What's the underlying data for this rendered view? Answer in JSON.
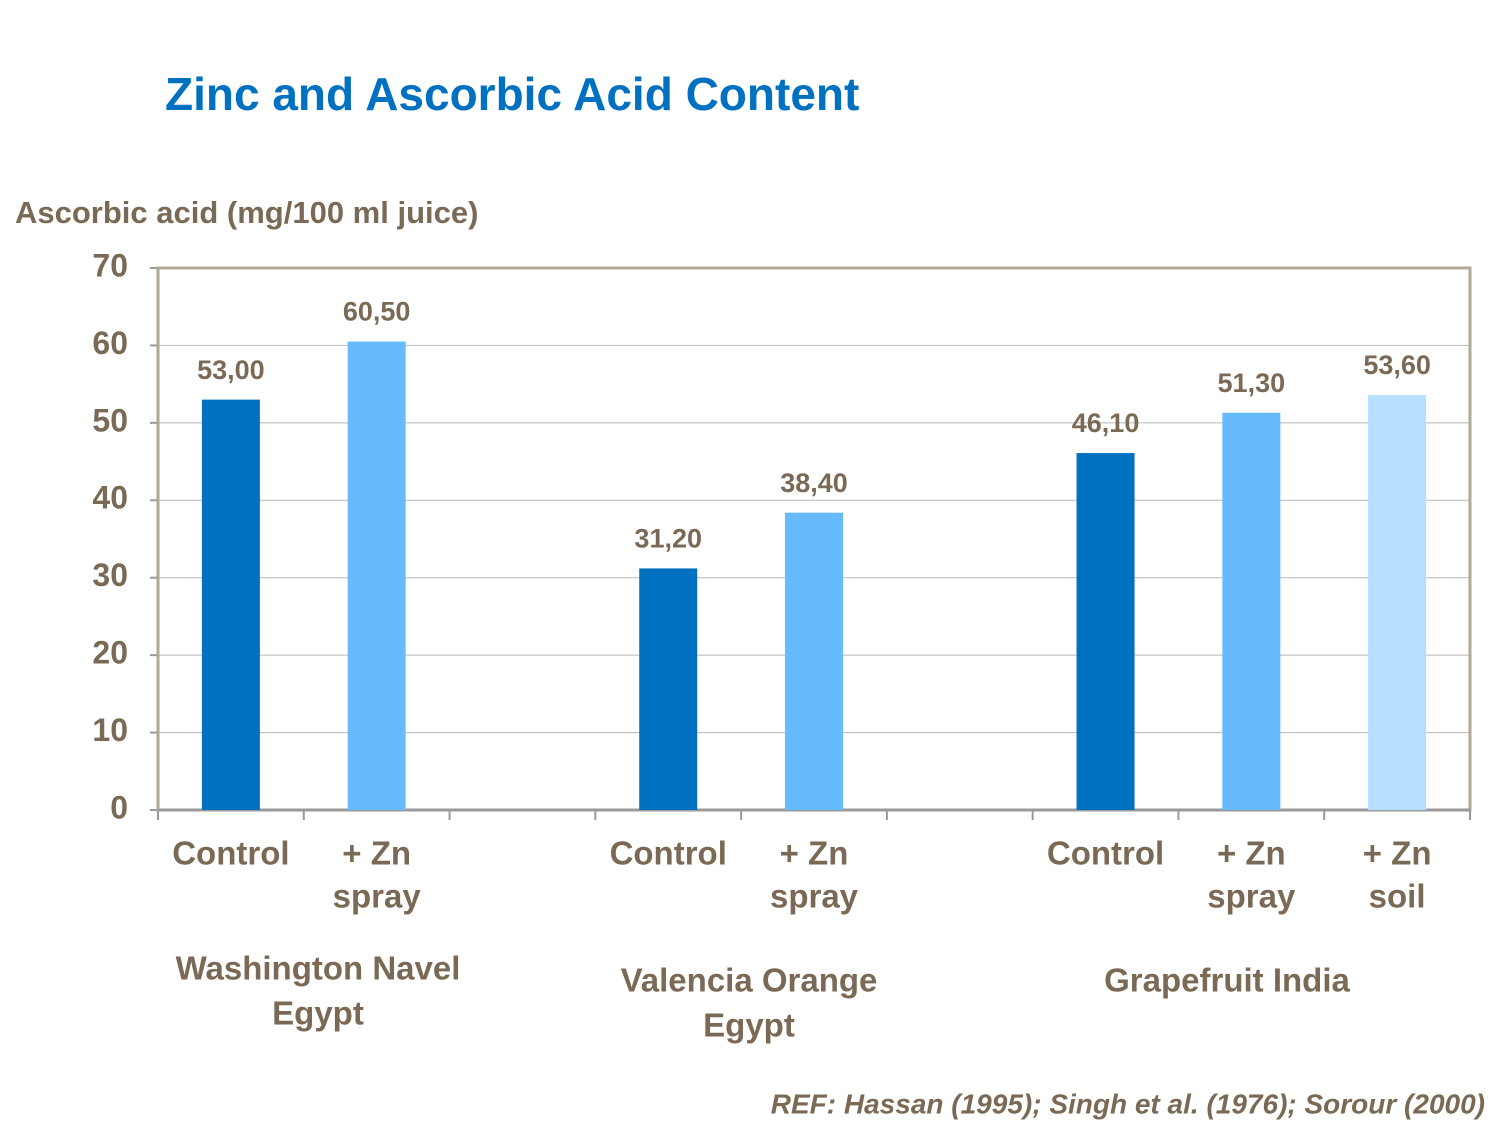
{
  "chart_data": {
    "type": "bar",
    "title": "Zinc and Ascorbic Acid Content",
    "y_label": "Ascorbic acid (mg/100 ml juice)",
    "categories": [
      [
        "Control"
      ],
      [
        "+ Zn",
        "spray"
      ],
      null,
      [
        "Control"
      ],
      [
        "+ Zn",
        "spray"
      ],
      null,
      [
        "Control"
      ],
      [
        "+ Zn",
        "spray"
      ],
      [
        "+ Zn",
        "soil"
      ]
    ],
    "values": [
      53.0,
      60.5,
      null,
      31.2,
      38.4,
      null,
      46.1,
      51.3,
      53.6
    ],
    "value_labels": [
      "53,00",
      "60,50",
      null,
      "31,20",
      "38,40",
      null,
      "46,10",
      "51,30",
      "53,60"
    ],
    "colors": [
      "#0070c0",
      "#66bbff",
      null,
      "#0070c0",
      "#66bbff",
      null,
      "#0070c0",
      "#66bbff",
      "#b8dfff"
    ],
    "groups": [
      [
        "Washington Navel",
        "Egypt"
      ],
      [
        "Valencia Orange",
        "Egypt"
      ],
      [
        "Grapefruit India"
      ]
    ],
    "ylim": [
      0,
      70
    ],
    "yticks": [
      0,
      10,
      20,
      30,
      40,
      50,
      60,
      70
    ],
    "grid": true,
    "reference": "REF: Hassan (1995); Singh et al. (1976); Sorour (2000)"
  }
}
